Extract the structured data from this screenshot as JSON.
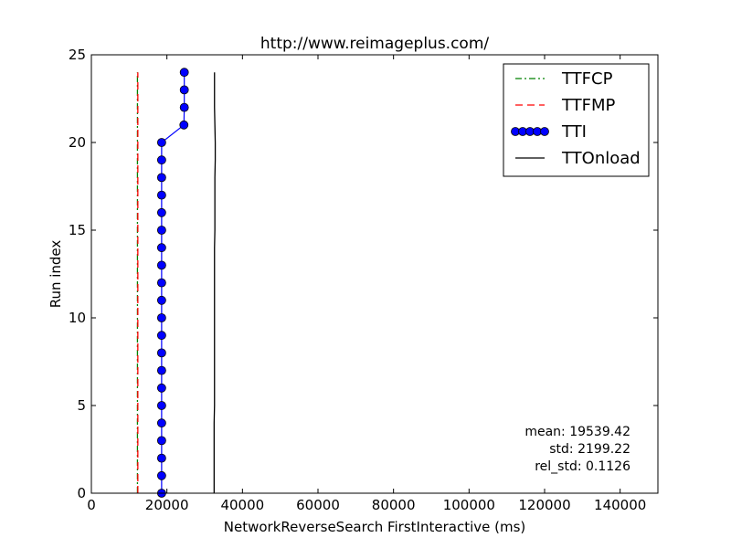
{
  "chart_data": {
    "type": "line",
    "title": "http://www.reimageplus.com/",
    "xlabel": "NetworkReverseSearch FirstInteractive (ms)",
    "ylabel": "Run index",
    "xlim": [
      0,
      150000
    ],
    "ylim": [
      0,
      25
    ],
    "xticks": [
      0,
      20000,
      40000,
      60000,
      80000,
      100000,
      120000,
      140000
    ],
    "xtick_labels": [
      "0",
      "20000",
      "40000",
      "60000",
      "80000",
      "100000",
      "120000",
      "140000"
    ],
    "yticks": [
      0,
      5,
      10,
      15,
      20,
      25
    ],
    "ytick_labels": [
      "0",
      "5",
      "10",
      "15",
      "20",
      "25"
    ],
    "grid": false,
    "legend_position": "top-right",
    "series": [
      {
        "name": "TTFCP",
        "color": "#008000",
        "style": "dashdot",
        "marker": "none",
        "points": [
          [
            12200,
            0
          ],
          [
            12200,
            1
          ],
          [
            12200,
            2
          ],
          [
            12200,
            3
          ],
          [
            12200,
            4
          ],
          [
            12200,
            5
          ],
          [
            12200,
            6
          ],
          [
            12200,
            7
          ],
          [
            12200,
            8
          ],
          [
            12200,
            9
          ],
          [
            12200,
            10
          ],
          [
            12200,
            11
          ],
          [
            12200,
            12
          ],
          [
            12200,
            13
          ],
          [
            12200,
            14
          ],
          [
            12200,
            15
          ],
          [
            12200,
            16
          ],
          [
            12200,
            17
          ],
          [
            12200,
            18
          ],
          [
            12200,
            19
          ],
          [
            12200,
            20
          ],
          [
            12200,
            21
          ],
          [
            12200,
            22
          ],
          [
            12200,
            23
          ],
          [
            12200,
            24
          ]
        ]
      },
      {
        "name": "TTFMP",
        "color": "#ff0000",
        "style": "dashed",
        "marker": "none",
        "points": [
          [
            12300,
            0
          ],
          [
            12300,
            1
          ],
          [
            12300,
            2
          ],
          [
            12300,
            3
          ],
          [
            12300,
            4
          ],
          [
            12300,
            5
          ],
          [
            12300,
            6
          ],
          [
            12300,
            7
          ],
          [
            12300,
            8
          ],
          [
            12300,
            9
          ],
          [
            12300,
            10
          ],
          [
            12300,
            11
          ],
          [
            12300,
            12
          ],
          [
            12300,
            13
          ],
          [
            12300,
            14
          ],
          [
            12300,
            15
          ],
          [
            12300,
            16
          ],
          [
            12300,
            17
          ],
          [
            12300,
            18
          ],
          [
            12300,
            19
          ],
          [
            12300,
            20
          ],
          [
            12300,
            21
          ],
          [
            12300,
            22
          ],
          [
            12300,
            23
          ],
          [
            12300,
            24
          ]
        ]
      },
      {
        "name": "TTI",
        "color": "#0000ff",
        "style": "solid",
        "marker": "circle",
        "points": [
          [
            18600,
            0
          ],
          [
            18600,
            1
          ],
          [
            18600,
            2
          ],
          [
            18600,
            3
          ],
          [
            18600,
            4
          ],
          [
            18600,
            5
          ],
          [
            18600,
            6
          ],
          [
            18600,
            7
          ],
          [
            18600,
            8
          ],
          [
            18600,
            9
          ],
          [
            18600,
            10
          ],
          [
            18600,
            11
          ],
          [
            18600,
            12
          ],
          [
            18600,
            13
          ],
          [
            18600,
            14
          ],
          [
            18600,
            15
          ],
          [
            18600,
            16
          ],
          [
            18600,
            17
          ],
          [
            18600,
            18
          ],
          [
            18600,
            19
          ],
          [
            18600,
            20
          ],
          [
            24500,
            21
          ],
          [
            24600,
            22
          ],
          [
            24600,
            23
          ],
          [
            24600,
            24
          ]
        ]
      },
      {
        "name": "TTOnload",
        "color": "#000000",
        "style": "solid",
        "marker": "none",
        "points": [
          [
            32500,
            0
          ],
          [
            32500,
            1
          ],
          [
            32500,
            2
          ],
          [
            32500,
            3
          ],
          [
            32500,
            4
          ],
          [
            32600,
            5
          ],
          [
            32600,
            6
          ],
          [
            32600,
            7
          ],
          [
            32600,
            8
          ],
          [
            32600,
            9
          ],
          [
            32600,
            10
          ],
          [
            32600,
            11
          ],
          [
            32600,
            12
          ],
          [
            32600,
            13
          ],
          [
            32600,
            14
          ],
          [
            32700,
            15
          ],
          [
            32700,
            16
          ],
          [
            32700,
            17
          ],
          [
            32700,
            18
          ],
          [
            32800,
            19
          ],
          [
            32800,
            20
          ],
          [
            32700,
            21
          ],
          [
            32600,
            22
          ],
          [
            32600,
            23
          ],
          [
            32600,
            24
          ]
        ]
      }
    ],
    "annotations": [
      "mean: 19539.42",
      "std: 2199.22",
      "rel_std: 0.1126"
    ]
  }
}
